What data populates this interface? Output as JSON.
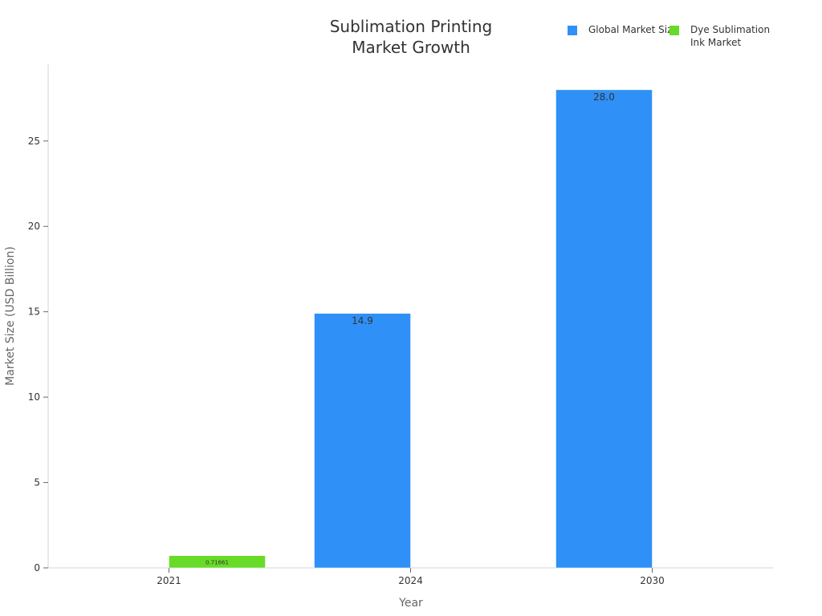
{
  "chart_data": {
    "type": "bar",
    "title": "Sublimation Printing Market Growth",
    "xlabel": "Year",
    "ylabel": "Market Size (USD Billion)",
    "categories": [
      "2021",
      "2024",
      "2030"
    ],
    "ylim": [
      0,
      29.5
    ],
    "yticks": [
      0,
      5,
      10,
      15,
      20,
      25
    ],
    "grid": false,
    "legend_position": "top-right",
    "series": [
      {
        "name": "Global Market Size",
        "color": "#2f90f7",
        "values": [
          null,
          14.9,
          28.0
        ],
        "labels": [
          "",
          "14.9",
          "28.0"
        ]
      },
      {
        "name": "Dye Sublimation Ink Market",
        "color": "#67db28",
        "values": [
          0.71661,
          null,
          null
        ],
        "labels": [
          "0.71661",
          "",
          ""
        ]
      }
    ]
  }
}
